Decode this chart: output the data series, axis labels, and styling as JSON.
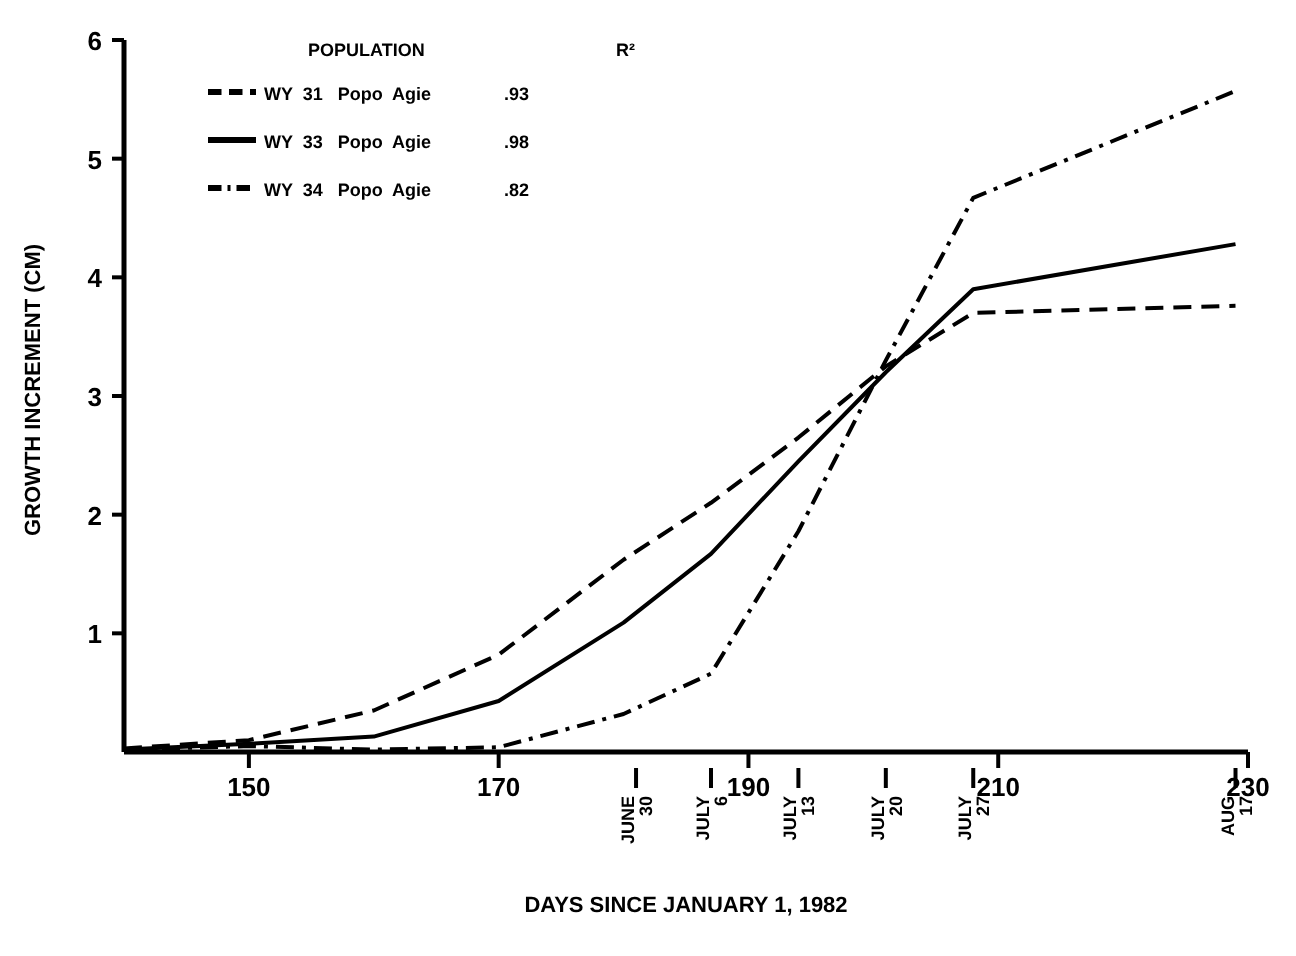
{
  "chart_data": {
    "type": "line",
    "xlabel": "DAYS SINCE JANUARY 1, 1982",
    "ylabel": "GROWTH INCREMENT (CM)",
    "legend_title": "POPULATION",
    "legend": "top left",
    "annotations": [
      "R²",
      ".93",
      ".98",
      ".82"
    ],
    "x": [
      140,
      150,
      160,
      170,
      180,
      187,
      194,
      201,
      208,
      229
    ],
    "xlim": [
      140,
      230
    ],
    "xticks": [
      150,
      170,
      190,
      210,
      230
    ],
    "x2lim": [
      "1982-05-20",
      "1982-08-18"
    ],
    "x2ticks": [
      {
        "value": "1982-06-30",
        "label": "JUNE 30"
      },
      {
        "value": "1982-07-06",
        "label": "JULY 6"
      },
      {
        "value": "1982-07-13",
        "label": "JULY 13"
      },
      {
        "value": "1982-07-20",
        "label": "JULY 20"
      },
      {
        "value": "1982-07-27",
        "label": "JULY 27"
      },
      {
        "value": "1982-08-17",
        "label": "AUG 17"
      }
    ],
    "ylim": [
      0,
      6
    ],
    "yticks": [
      1,
      2,
      3,
      4,
      5,
      6
    ],
    "grid": false,
    "marker": "none",
    "series": [
      {
        "name": "WY  31   Popo  Agie",
        "color": "#000000",
        "line_style": "dashed",
        "values": [
          0.03,
          0.1,
          0.35,
          0.82,
          1.62,
          2.1,
          2.65,
          3.25,
          3.7,
          3.76
        ]
      },
      {
        "name": "WY  33   Popo  Agie",
        "color": "#000000",
        "line_style": "solid",
        "values": [
          0.02,
          0.07,
          0.13,
          0.43,
          1.09,
          1.67,
          2.45,
          3.2,
          3.9,
          4.28
        ]
      },
      {
        "name": "WY  34   Popo  Agie",
        "color": "#000000",
        "line_style": "dashdot",
        "values": [
          0.02,
          0.05,
          0.02,
          0.04,
          0.32,
          0.66,
          1.86,
          3.3,
          4.67,
          5.57
        ]
      }
    ]
  }
}
